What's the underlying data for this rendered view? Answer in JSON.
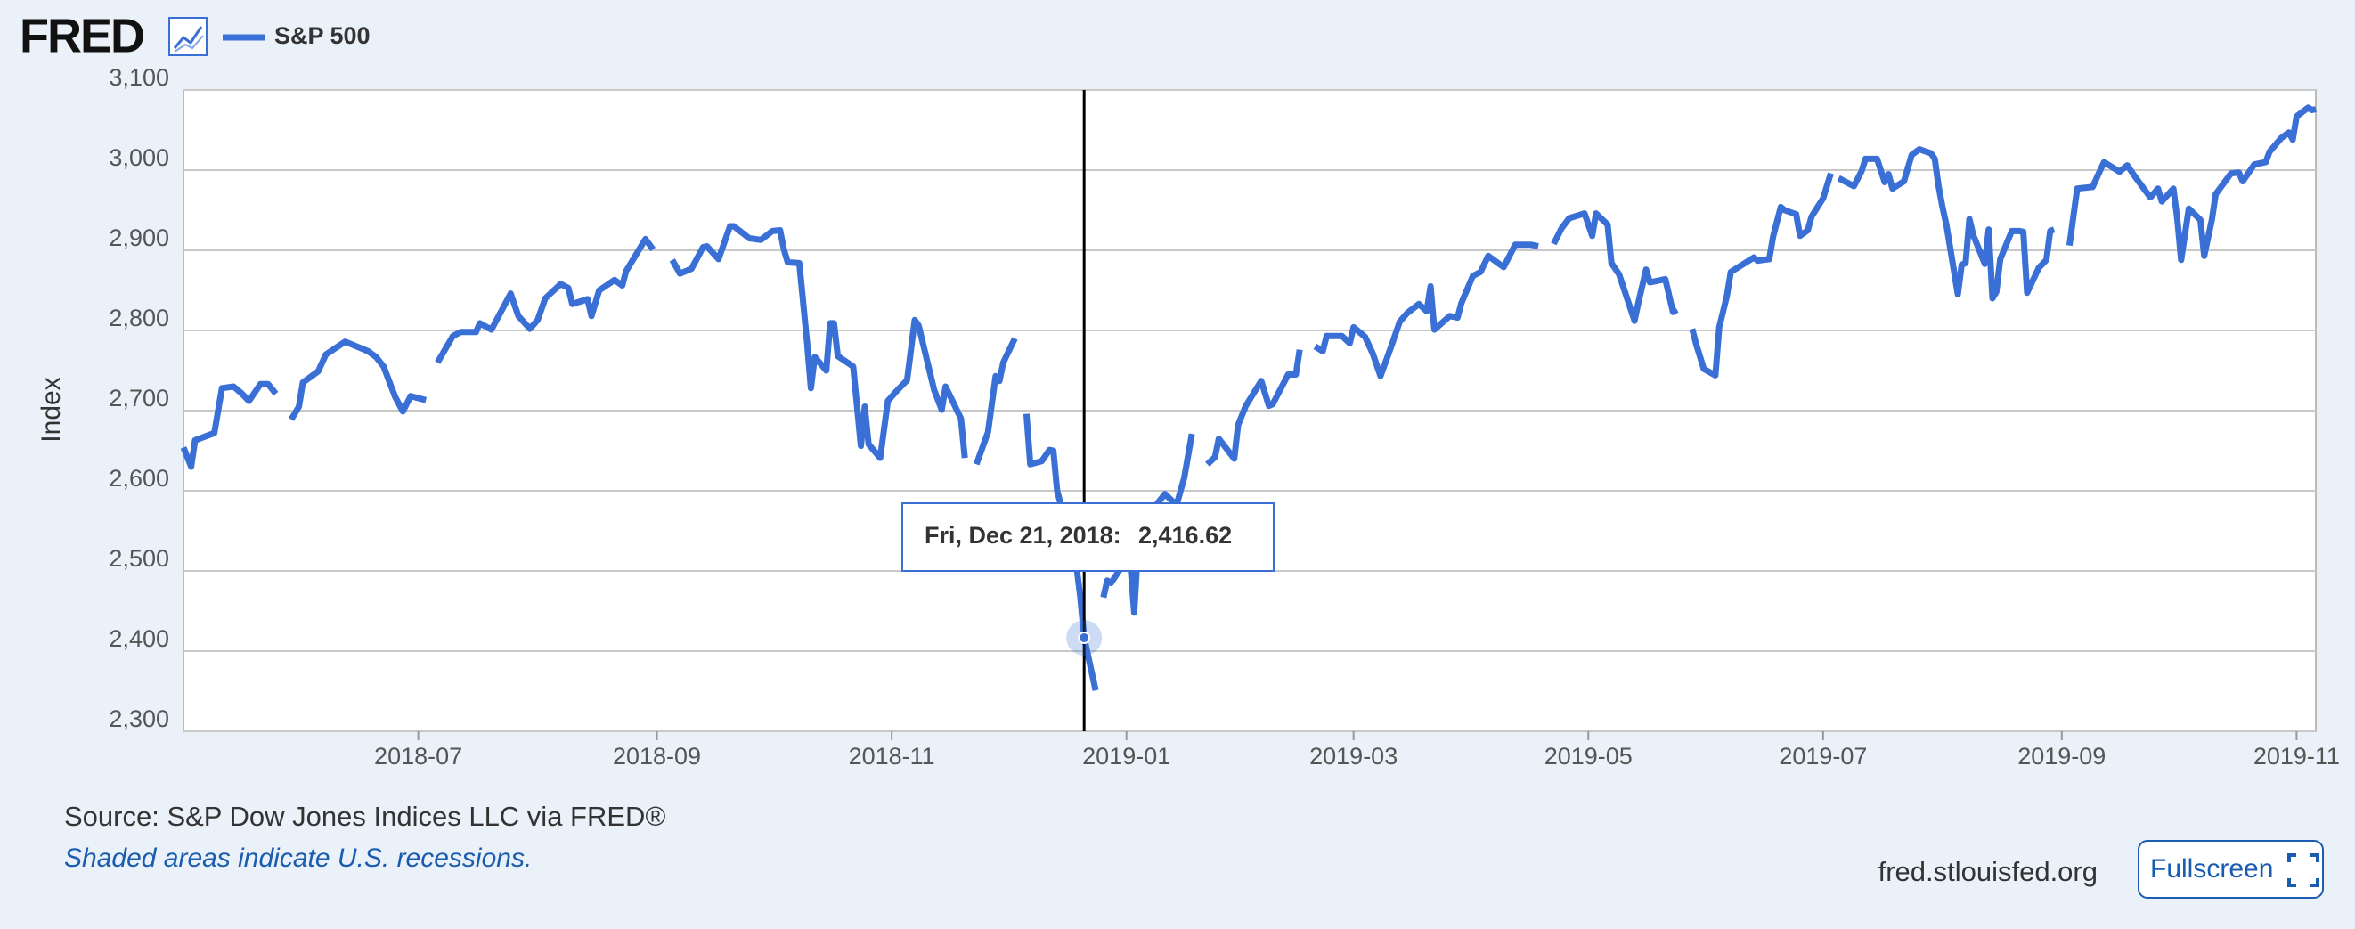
{
  "logo": "FRED",
  "chart_data": {
    "type": "line",
    "y_label": "Index",
    "xlim": [
      "2018-05-01",
      "2019-11-06"
    ],
    "xticks": [
      "2018-07",
      "2018-09",
      "2018-11",
      "2019-01",
      "2019-03",
      "2019-05",
      "2019-07",
      "2019-09",
      "2019-11"
    ],
    "ylim": [
      2300,
      3100
    ],
    "yticks": [
      {
        "value": 2300,
        "label": "2,300"
      },
      {
        "value": 2400,
        "label": "2,400"
      },
      {
        "value": 2500,
        "label": "2,500"
      },
      {
        "value": 2600,
        "label": "2,600"
      },
      {
        "value": 2700,
        "label": "2,700"
      },
      {
        "value": 2800,
        "label": "2,800"
      },
      {
        "value": 2900,
        "label": "2,900"
      },
      {
        "value": 3000,
        "label": "3,000"
      },
      {
        "value": 3100,
        "label": "3,100"
      }
    ],
    "grid": true,
    "x": [
      "2018-05-01",
      "2018-05-03",
      "2018-05-04",
      "2018-05-09",
      "2018-05-11",
      "2018-05-14",
      "2018-05-16",
      "2018-05-18",
      "2018-05-21",
      "2018-05-23",
      "2018-05-25",
      "2018-05-28",
      "2018-05-29",
      "2018-05-31",
      "2018-06-01",
      "2018-06-05",
      "2018-06-07",
      "2018-06-12",
      "2018-06-14",
      "2018-06-18",
      "2018-06-20",
      "2018-06-22",
      "2018-06-25",
      "2018-06-27",
      "2018-06-29",
      "2018-07-03",
      "2018-07-04",
      "2018-07-06",
      "2018-07-10",
      "2018-07-12",
      "2018-07-16",
      "2018-07-17",
      "2018-07-20",
      "2018-07-25",
      "2018-07-27",
      "2018-07-30",
      "2018-08-01",
      "2018-08-03",
      "2018-08-07",
      "2018-08-09",
      "2018-08-10",
      "2018-08-14",
      "2018-08-15",
      "2018-08-17",
      "2018-08-21",
      "2018-08-23",
      "2018-08-24",
      "2018-08-29",
      "2018-08-31",
      "2018-09-03",
      "2018-09-05",
      "2018-09-07",
      "2018-09-10",
      "2018-09-13",
      "2018-09-14",
      "2018-09-17",
      "2018-09-20",
      "2018-09-21",
      "2018-09-25",
      "2018-09-28",
      "2018-10-01",
      "2018-10-03",
      "2018-10-04",
      "2018-10-05",
      "2018-10-08",
      "2018-10-10",
      "2018-10-11",
      "2018-10-12",
      "2018-10-15",
      "2018-10-16",
      "2018-10-17",
      "2018-10-18",
      "2018-10-22",
      "2018-10-24",
      "2018-10-25",
      "2018-10-26",
      "2018-10-29",
      "2018-10-31",
      "2018-11-02",
      "2018-11-05",
      "2018-11-07",
      "2018-11-08",
      "2018-11-12",
      "2018-11-14",
      "2018-11-15",
      "2018-11-19",
      "2018-11-20",
      "2018-11-22",
      "2018-11-23",
      "2018-11-26",
      "2018-11-28",
      "2018-11-29",
      "2018-11-30",
      "2018-12-03",
      "2018-12-05",
      "2018-12-06",
      "2018-12-07",
      "2018-12-10",
      "2018-12-12",
      "2018-12-13",
      "2018-12-14",
      "2018-12-17",
      "2018-12-18",
      "2018-12-19",
      "2018-12-20",
      "2018-12-21",
      "2018-12-24",
      "2018-12-25",
      "2018-12-26",
      "2018-12-27",
      "2018-12-28",
      "2018-12-31",
      "2019-01-02",
      "2019-01-03",
      "2019-01-04",
      "2019-01-07",
      "2019-01-09",
      "2019-01-11",
      "2019-01-14",
      "2019-01-16",
      "2019-01-18",
      "2019-01-21",
      "2019-01-22",
      "2019-01-24",
      "2019-01-25",
      "2019-01-29",
      "2019-01-30",
      "2019-02-01",
      "2019-02-05",
      "2019-02-07",
      "2019-02-08",
      "2019-02-12",
      "2019-02-14",
      "2019-02-15",
      "2019-02-18",
      "2019-02-19",
      "2019-02-21",
      "2019-02-22",
      "2019-02-26",
      "2019-02-28",
      "2019-03-01",
      "2019-03-04",
      "2019-03-06",
      "2019-03-08",
      "2019-03-11",
      "2019-03-13",
      "2019-03-15",
      "2019-03-18",
      "2019-03-20",
      "2019-03-21",
      "2019-03-22",
      "2019-03-26",
      "2019-03-28",
      "2019-03-29",
      "2019-04-01",
      "2019-04-03",
      "2019-04-05",
      "2019-04-09",
      "2019-04-12",
      "2019-04-16",
      "2019-04-18",
      "2019-04-19",
      "2019-04-22",
      "2019-04-24",
      "2019-04-26",
      "2019-04-30",
      "2019-05-02",
      "2019-05-03",
      "2019-05-06",
      "2019-05-07",
      "2019-05-09",
      "2019-05-13",
      "2019-05-14",
      "2019-05-16",
      "2019-05-17",
      "2019-05-21",
      "2019-05-23",
      "2019-05-24",
      "2019-05-27",
      "2019-05-28",
      "2019-05-29",
      "2019-05-31",
      "2019-06-03",
      "2019-06-04",
      "2019-06-06",
      "2019-06-07",
      "2019-06-11",
      "2019-06-13",
      "2019-06-14",
      "2019-06-17",
      "2019-06-18",
      "2019-06-20",
      "2019-06-21",
      "2019-06-24",
      "2019-06-25",
      "2019-06-27",
      "2019-06-28",
      "2019-07-01",
      "2019-07-03",
      "2019-07-04",
      "2019-07-05",
      "2019-07-09",
      "2019-07-11",
      "2019-07-12",
      "2019-07-15",
      "2019-07-17",
      "2019-07-18",
      "2019-07-19",
      "2019-07-22",
      "2019-07-24",
      "2019-07-26",
      "2019-07-29",
      "2019-07-30",
      "2019-07-31",
      "2019-08-01",
      "2019-08-02",
      "2019-08-05",
      "2019-08-06",
      "2019-08-07",
      "2019-08-08",
      "2019-08-09",
      "2019-08-12",
      "2019-08-13",
      "2019-08-14",
      "2019-08-15",
      "2019-08-16",
      "2019-08-19",
      "2019-08-21",
      "2019-08-22",
      "2019-08-23",
      "2019-08-26",
      "2019-08-28",
      "2019-08-29",
      "2019-08-30",
      "2019-09-02",
      "2019-09-03",
      "2019-09-05",
      "2019-09-09",
      "2019-09-11",
      "2019-09-12",
      "2019-09-13",
      "2019-09-16",
      "2019-09-18",
      "2019-09-20",
      "2019-09-24",
      "2019-09-26",
      "2019-09-27",
      "2019-09-30",
      "2019-10-01",
      "2019-10-02",
      "2019-10-04",
      "2019-10-07",
      "2019-10-08",
      "2019-10-10",
      "2019-10-11",
      "2019-10-15",
      "2019-10-17",
      "2019-10-18",
      "2019-10-21",
      "2019-10-24",
      "2019-10-25",
      "2019-10-28",
      "2019-10-30",
      "2019-10-31",
      "2019-11-01",
      "2019-11-04",
      "2019-11-05",
      "2019-11-06"
    ],
    "series": [
      {
        "name": "S&P 500",
        "color": "#3a70d6",
        "values": [
          2654,
          2630,
          2663,
          2672,
          2728,
          2730,
          2722,
          2712,
          2733,
          2733,
          2721,
          null,
          2689,
          2705,
          2735,
          2749,
          2770,
          2786,
          2782,
          2774,
          2767,
          2755,
          2717,
          2699,
          2718,
          2713,
          null,
          2760,
          2793,
          2798,
          2798,
          2809,
          2801,
          2846,
          2818,
          2802,
          2813,
          2840,
          2858,
          2853,
          2833,
          2839,
          2818,
          2850,
          2863,
          2856,
          2874,
          2914,
          2901,
          null,
          2888,
          2871,
          2877,
          2904,
          2905,
          2889,
          2930,
          2930,
          2915,
          2913,
          2924,
          2925,
          2901,
          2885,
          2884,
          2785,
          2728,
          2767,
          2750,
          2809,
          2809,
          2768,
          2755,
          2656,
          2705,
          2658,
          2641,
          2712,
          2723,
          2738,
          2813,
          2806,
          2726,
          2701,
          2730,
          2690,
          2641,
          null,
          2633,
          2673,
          2743,
          2737,
          2760,
          2790,
          null,
          2696,
          2633,
          2637,
          2651,
          2650,
          2600,
          2545,
          2546,
          2507,
          2467,
          2416.62,
          2351,
          null,
          2467,
          2488,
          2485,
          2507,
          2510,
          2448,
          2531,
          2549,
          2584,
          2596,
          2582,
          2616,
          2671,
          null,
          2633,
          2642,
          2665,
          2640,
          2682,
          2706,
          2737,
          2706,
          2708,
          2745,
          2745,
          2776,
          null,
          2780,
          2774,
          2793,
          2793,
          2784,
          2804,
          2792,
          2771,
          2743,
          2783,
          2811,
          2822,
          2833,
          2824,
          2855,
          2801,
          2818,
          2816,
          2834,
          2868,
          2873,
          2893,
          2879,
          2907,
          2907,
          2905,
          null,
          2908,
          2927,
          2940,
          2946,
          2918,
          2946,
          2932,
          2884,
          2870,
          2812,
          2835,
          2876,
          2860,
          2864,
          2823,
          2826,
          null,
          2802,
          2783,
          2752,
          2744,
          2804,
          2843,
          2873,
          2885,
          2891,
          2887,
          2889,
          2917,
          2954,
          2950,
          2945,
          2918,
          2925,
          2942,
          2965,
          2996,
          null,
          2990,
          2980,
          2999,
          3014,
          3014,
          2985,
          2995,
          2977,
          2986,
          3019,
          3026,
          3021,
          3014,
          2980,
          2954,
          2932,
          2845,
          2882,
          2884,
          2939,
          2919,
          2883,
          2926,
          2840,
          2848,
          2889,
          2924,
          2924,
          2923,
          2847,
          2878,
          2888,
          2924,
          2926,
          null,
          2906,
          2977,
          2979,
          3000,
          3010,
          3007,
          2998,
          3006,
          2992,
          2966,
          2977,
          2961,
          2977,
          2940,
          2888,
          2952,
          2938,
          2893,
          2938,
          2970,
          2996,
          2997,
          2986,
          3007,
          3010,
          3023,
          3040,
          3047,
          3038,
          3067,
          3078,
          3075,
          3076
        ]
      }
    ],
    "tooltip": {
      "x": "2018-12-21",
      "date_label": "Fri, Dec 21, 2018:",
      "value": 2416.62,
      "value_label": "2,416.62"
    }
  },
  "footer": {
    "source": "Source: S&P Dow Jones Indices LLC via FRED®",
    "note": "Shaded areas indicate U.S. recessions.",
    "site": "fred.stlouisfed.org",
    "button": "Fullscreen"
  }
}
